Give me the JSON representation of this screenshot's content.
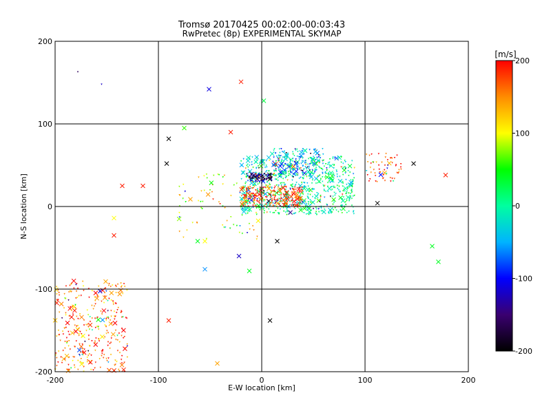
{
  "chart_data": {
    "type": "scatter",
    "title": "Tromsø 20170425 00:02:00-00:03:43",
    "subtitle": "RwPretec (8p) EXPERIMENTAL SKYMAP",
    "xlabel": "E-W location [km]",
    "ylabel": "N-S location [km]",
    "xlim": [
      -200,
      200
    ],
    "ylim": [
      -200,
      200
    ],
    "xticks": [
      "-200",
      "-100",
      "0",
      "100",
      "200"
    ],
    "yticks": [
      "-200",
      "-100",
      "0",
      "100",
      "200"
    ],
    "grid": true,
    "marker_styles": [
      "dot",
      "cross"
    ],
    "colorbar": {
      "label": "[m/s]",
      "range": [
        -200,
        200
      ],
      "ticks": [
        "200",
        "100",
        "0",
        "-100",
        "-200"
      ],
      "colormap": [
        "#000000",
        "#3a0070",
        "#0000ff",
        "#00b4ff",
        "#00ffa0",
        "#00ff00",
        "#ffff00",
        "#ff8c00",
        "#ff0000"
      ]
    },
    "point_clusters": [
      {
        "x_range": [
          -20,
          90
        ],
        "y_range": [
          -10,
          60
        ],
        "count": 700,
        "velocity_mean": 0
      },
      {
        "x_range": [
          -20,
          40
        ],
        "y_range": [
          0,
          25
        ],
        "count": 250,
        "velocity_mean": 180
      },
      {
        "x_range": [
          -15,
          10
        ],
        "y_range": [
          30,
          40
        ],
        "count": 120,
        "velocity_mean": -150
      },
      {
        "x_range": [
          10,
          60
        ],
        "y_range": [
          35,
          70
        ],
        "count": 200,
        "velocity_mean": -40
      },
      {
        "x_range": [
          -200,
          -130
        ],
        "y_range": [
          -200,
          -90
        ],
        "count": 350,
        "velocity_mean": 160
      },
      {
        "x_range": [
          100,
          135
        ],
        "y_range": [
          30,
          65
        ],
        "count": 60,
        "velocity_mean": 190
      },
      {
        "x_range": [
          -80,
          0
        ],
        "y_range": [
          -40,
          40
        ],
        "count": 80,
        "velocity_mean": 100
      }
    ],
    "sample_points": [
      {
        "x": -155,
        "y": 148,
        "v": -120,
        "m": "dot"
      },
      {
        "x": -178,
        "y": 163,
        "v": -160,
        "m": "dot"
      },
      {
        "x": -51,
        "y": 142,
        "v": -110,
        "m": "cross"
      },
      {
        "x": 2,
        "y": 128,
        "v": 30,
        "m": "cross"
      },
      {
        "x": -20,
        "y": 151,
        "v": 190,
        "m": "cross"
      },
      {
        "x": -90,
        "y": 82,
        "v": -200,
        "m": "cross"
      },
      {
        "x": -115,
        "y": 25,
        "v": 190,
        "m": "cross"
      },
      {
        "x": -135,
        "y": 25,
        "v": 190,
        "m": "cross"
      },
      {
        "x": -143,
        "y": -14,
        "v": 100,
        "m": "cross"
      },
      {
        "x": -143,
        "y": -35,
        "v": 190,
        "m": "cross"
      },
      {
        "x": -90,
        "y": -138,
        "v": 190,
        "m": "cross"
      },
      {
        "x": 8,
        "y": -138,
        "v": -200,
        "m": "cross"
      },
      {
        "x": -55,
        "y": -42,
        "v": 100,
        "m": "cross"
      },
      {
        "x": -62,
        "y": -42,
        "v": 40,
        "m": "cross"
      },
      {
        "x": -55,
        "y": -76,
        "v": -60,
        "m": "cross"
      },
      {
        "x": -22,
        "y": -60,
        "v": -120,
        "m": "cross"
      },
      {
        "x": -12,
        "y": -78,
        "v": 40,
        "m": "cross"
      },
      {
        "x": 15,
        "y": -42,
        "v": -200,
        "m": "cross"
      },
      {
        "x": 112,
        "y": 4,
        "v": -200,
        "m": "cross"
      },
      {
        "x": 147,
        "y": 52,
        "v": -200,
        "m": "cross"
      },
      {
        "x": 178,
        "y": 38,
        "v": 190,
        "m": "cross"
      },
      {
        "x": 165,
        "y": -48,
        "v": 40,
        "m": "cross"
      },
      {
        "x": 171,
        "y": -67,
        "v": 40,
        "m": "cross"
      },
      {
        "x": -43,
        "y": -190,
        "v": 140,
        "m": "cross"
      },
      {
        "x": -92,
        "y": 52,
        "v": -200,
        "m": "cross"
      },
      {
        "x": -75,
        "y": 95,
        "v": 60,
        "m": "cross"
      },
      {
        "x": -30,
        "y": 90,
        "v": 190,
        "m": "cross"
      }
    ]
  }
}
